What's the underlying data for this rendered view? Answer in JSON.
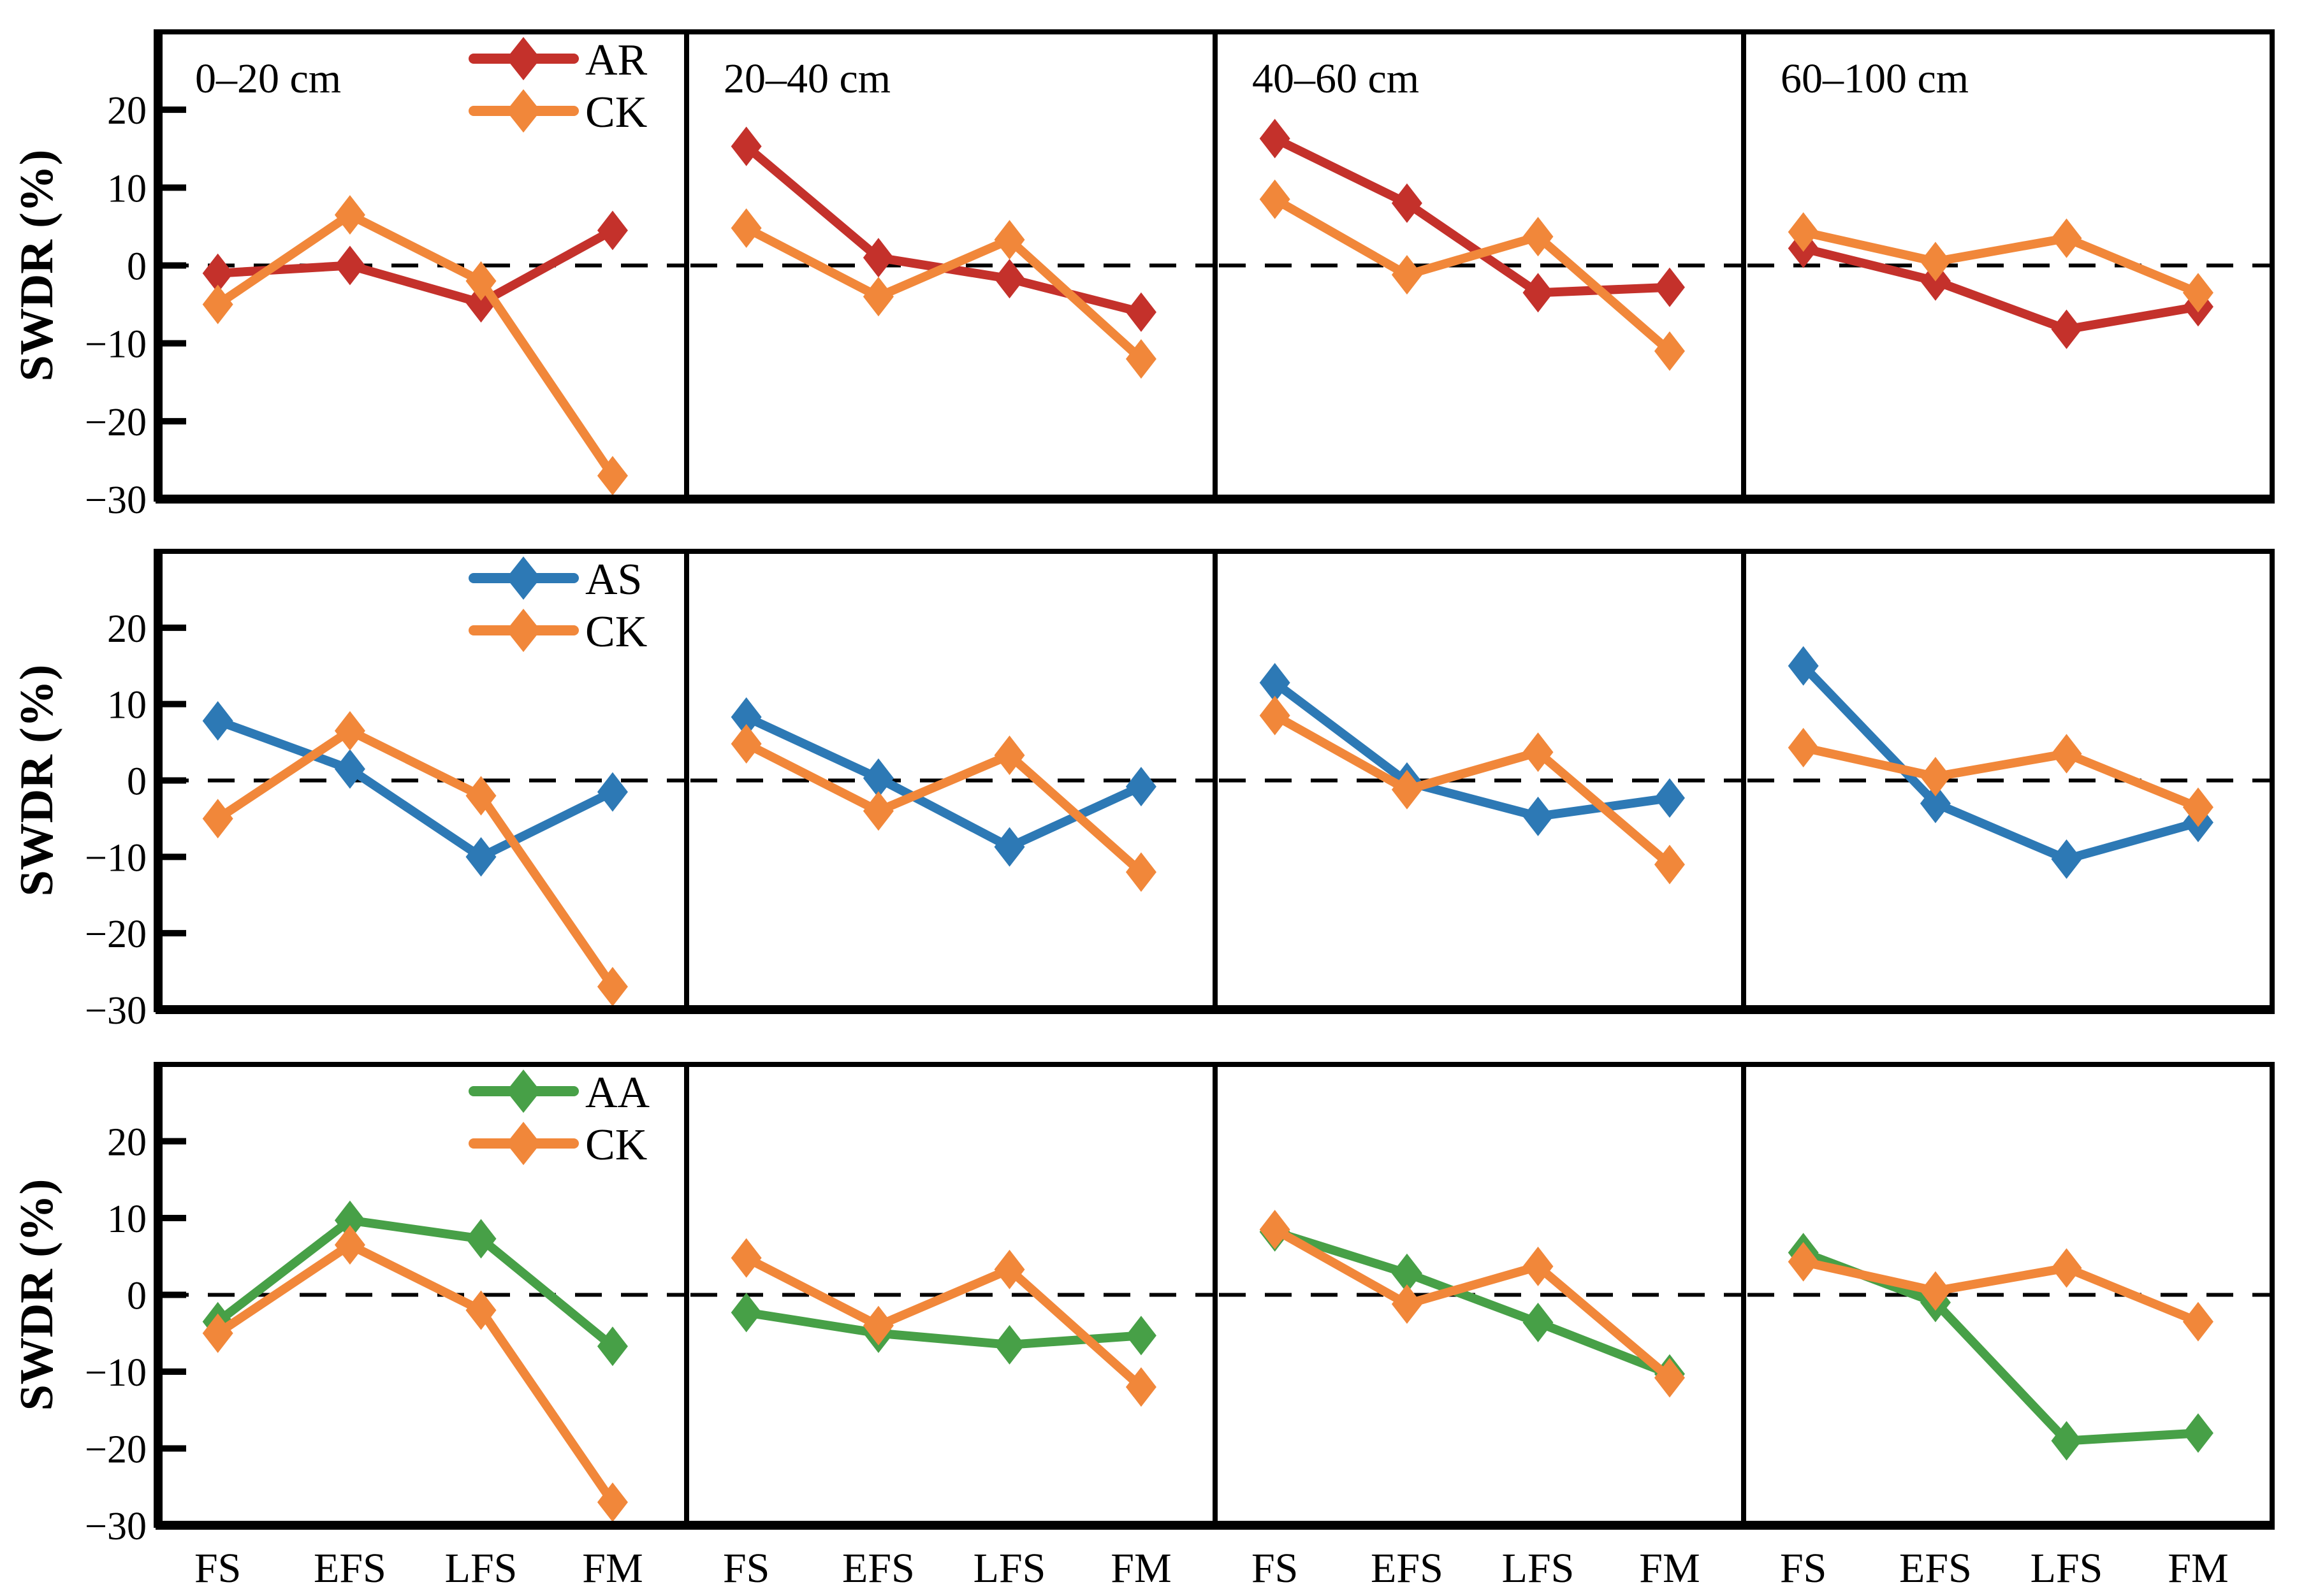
{
  "figure": {
    "ylabel": "SWDR (%)",
    "x_axis_labels": [
      "FS",
      "EFS",
      "LFS",
      "FM"
    ],
    "column_titles": [
      "0–20 cm",
      "20–40 cm",
      "40–60 cm",
      "60–100 cm"
    ],
    "y_tick_labels": [
      "20",
      "10",
      "0",
      "−10",
      "−20",
      "−30"
    ]
  },
  "chart_data": {
    "type": "line",
    "grid": {
      "rows": 3,
      "cols": 4
    },
    "title": "",
    "ylabel": "SWDR (%)",
    "xlabel": "",
    "x_categories": [
      "FS",
      "EFS",
      "LFS",
      "FM"
    ],
    "ylim": [
      -30,
      30
    ],
    "y_ticks": [
      20,
      10,
      0,
      -10,
      -20,
      -30
    ],
    "y_tick_labels": [
      "20",
      "10",
      "0",
      "−10",
      "−20",
      "−30"
    ],
    "zero_line_style": "dashed",
    "grid_lines": "off",
    "legend_position": "top-right-of-first-panel-in-each-row",
    "column_titles": [
      "0–20 cm",
      "20–40 cm",
      "40–60 cm",
      "60–100 cm"
    ],
    "row_treatments": [
      "AR",
      "AS",
      "AA"
    ],
    "series_colors": {
      "AR": "#c4312b",
      "CK": "#f1873a",
      "AS": "#2d79b5",
      "AA": "#47a047"
    },
    "marker": "diamond",
    "panels": [
      {
        "row": 0,
        "col": 0,
        "depth": "0–20 cm",
        "legend": [
          "AR",
          "CK"
        ],
        "series": [
          {
            "name": "AR",
            "values": [
              -1,
              0,
              -4.8,
              4.5
            ]
          },
          {
            "name": "CK",
            "values": [
              -5,
              6.5,
              -2,
              -27
            ]
          }
        ]
      },
      {
        "row": 0,
        "col": 1,
        "depth": "20–40 cm",
        "series": [
          {
            "name": "AR",
            "values": [
              15.3,
              1,
              -1.7,
              -6
            ]
          },
          {
            "name": "CK",
            "values": [
              4.8,
              -4,
              3.3,
              -12
            ]
          }
        ]
      },
      {
        "row": 0,
        "col": 2,
        "depth": "40–60 cm",
        "series": [
          {
            "name": "AR",
            "values": [
              16.3,
              8,
              -3.5,
              -2.8
            ]
          },
          {
            "name": "CK",
            "values": [
              8.5,
              -1.2,
              3.7,
              -11
            ]
          }
        ]
      },
      {
        "row": 0,
        "col": 3,
        "depth": "60–100 cm",
        "series": [
          {
            "name": "AR",
            "values": [
              2.2,
              -2,
              -8.2,
              -5.3
            ]
          },
          {
            "name": "CK",
            "values": [
              4.3,
              0.5,
              3.5,
              -3.5
            ]
          }
        ]
      },
      {
        "row": 1,
        "col": 0,
        "depth": "0–20 cm",
        "legend": [
          "AS",
          "CK"
        ],
        "series": [
          {
            "name": "AS",
            "values": [
              7.8,
              1.5,
              -10,
              -1.5
            ]
          },
          {
            "name": "CK",
            "values": [
              -5,
              6.5,
              -2,
              -27
            ]
          }
        ]
      },
      {
        "row": 1,
        "col": 1,
        "depth": "20–40 cm",
        "series": [
          {
            "name": "AS",
            "values": [
              8.3,
              0.3,
              -8.7,
              -0.8
            ]
          },
          {
            "name": "CK",
            "values": [
              4.8,
              -4,
              3.3,
              -12
            ]
          }
        ]
      },
      {
        "row": 1,
        "col": 2,
        "depth": "40–60 cm",
        "series": [
          {
            "name": "AS",
            "values": [
              12.8,
              -0.2,
              -4.7,
              -2.3
            ]
          },
          {
            "name": "CK",
            "values": [
              8.5,
              -1.2,
              3.7,
              -11
            ]
          }
        ]
      },
      {
        "row": 1,
        "col": 3,
        "depth": "60–100 cm",
        "series": [
          {
            "name": "AS",
            "values": [
              15,
              -3,
              -10.3,
              -5.5
            ]
          },
          {
            "name": "CK",
            "values": [
              4.3,
              0.5,
              3.5,
              -3.5
            ]
          }
        ]
      },
      {
        "row": 2,
        "col": 0,
        "depth": "0–20 cm",
        "legend": [
          "AA",
          "CK"
        ],
        "series": [
          {
            "name": "AA",
            "values": [
              -3.5,
              9.7,
              7.3,
              -6.7
            ]
          },
          {
            "name": "CK",
            "values": [
              -5,
              6.5,
              -2,
              -27
            ]
          }
        ]
      },
      {
        "row": 2,
        "col": 1,
        "depth": "20–40 cm",
        "series": [
          {
            "name": "AA",
            "values": [
              -2.3,
              -5,
              -6.5,
              -5.3
            ]
          },
          {
            "name": "CK",
            "values": [
              4.8,
              -4,
              3.3,
              -12
            ]
          }
        ]
      },
      {
        "row": 2,
        "col": 2,
        "depth": "40–60 cm",
        "series": [
          {
            "name": "AA",
            "values": [
              8.2,
              2.8,
              -3.6,
              -10.3
            ]
          },
          {
            "name": "CK",
            "values": [
              8.5,
              -1.2,
              3.7,
              -10.8
            ]
          }
        ]
      },
      {
        "row": 2,
        "col": 3,
        "depth": "60–100 cm",
        "series": [
          {
            "name": "AA",
            "values": [
              5.5,
              -1,
              -19,
              -18
            ]
          },
          {
            "name": "CK",
            "values": [
              4.3,
              0.5,
              3.5,
              -3.5
            ]
          }
        ]
      }
    ]
  }
}
